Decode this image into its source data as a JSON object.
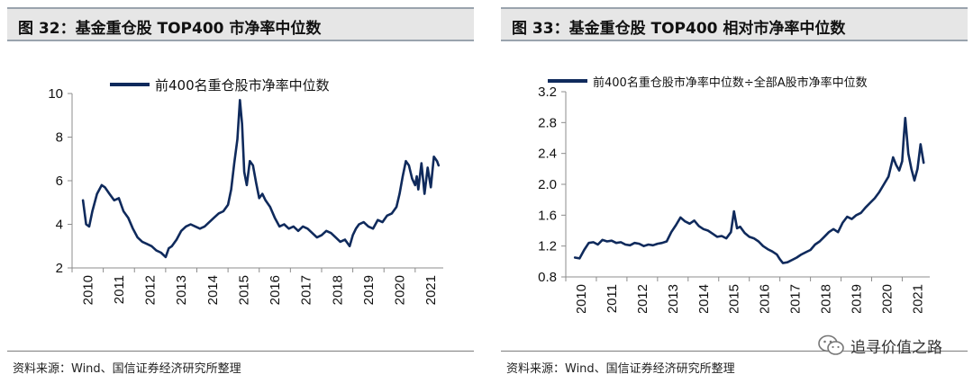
{
  "panels": [
    {
      "title": "图 32：基金重仓股 TOP400 市净率中位数",
      "source": "资料来源：Wind、国信证券经济研究所整理"
    },
    {
      "title": "图 33：基金重仓股 TOP400 相对市净率中位数",
      "source": "资料来源：Wind、国信证券经济研究所整理"
    }
  ],
  "watermark": {
    "text": "追寻价值之路",
    "icon": "wechat-icon"
  },
  "colors": {
    "series": "#0f2a5c",
    "axis": "#8c8c8c",
    "title_bg": "#e6e6e6"
  },
  "chart_data": [
    {
      "type": "line",
      "title": "",
      "legend": "top-left",
      "grid": false,
      "xlabel": "",
      "ylabel": "",
      "xlim": [
        2010,
        2021.9
      ],
      "ylim": [
        2,
        10
      ],
      "yticks": [
        2,
        4,
        6,
        8,
        10
      ],
      "xticks": [
        "2010",
        "2011",
        "2012",
        "2013",
        "2014",
        "2015",
        "2016",
        "2017",
        "2018",
        "2019",
        "2020",
        "2021"
      ],
      "series": [
        {
          "name": "前400名重仓股市净率中位数",
          "x": [
            2010.35,
            2010.45,
            2010.55,
            2010.65,
            2010.8,
            2010.95,
            2011.05,
            2011.2,
            2011.35,
            2011.5,
            2011.65,
            2011.8,
            2011.95,
            2012.1,
            2012.25,
            2012.4,
            2012.55,
            2012.7,
            2012.85,
            2013.0,
            2013.1,
            2013.2,
            2013.35,
            2013.5,
            2013.65,
            2013.8,
            2013.95,
            2014.1,
            2014.25,
            2014.4,
            2014.55,
            2014.7,
            2014.85,
            2015.0,
            2015.1,
            2015.2,
            2015.3,
            2015.38,
            2015.45,
            2015.52,
            2015.6,
            2015.7,
            2015.8,
            2015.9,
            2016.0,
            2016.1,
            2016.2,
            2016.35,
            2016.5,
            2016.65,
            2016.8,
            2016.95,
            2017.1,
            2017.25,
            2017.4,
            2017.55,
            2017.7,
            2017.85,
            2018.0,
            2018.15,
            2018.3,
            2018.45,
            2018.6,
            2018.75,
            2018.9,
            2019.0,
            2019.1,
            2019.2,
            2019.35,
            2019.5,
            2019.65,
            2019.8,
            2019.95,
            2020.1,
            2020.25,
            2020.4,
            2020.5,
            2020.6,
            2020.7,
            2020.8,
            2020.9,
            2021.0,
            2021.05,
            2021.1,
            2021.2,
            2021.3,
            2021.4,
            2021.5,
            2021.6,
            2021.7,
            2021.75
          ],
          "y": [
            5.1,
            4.0,
            3.9,
            4.6,
            5.4,
            5.8,
            5.7,
            5.4,
            5.1,
            5.2,
            4.6,
            4.3,
            3.8,
            3.4,
            3.2,
            3.1,
            3.0,
            2.8,
            2.7,
            2.5,
            2.9,
            3.0,
            3.3,
            3.7,
            3.9,
            4.0,
            3.9,
            3.8,
            3.9,
            4.1,
            4.3,
            4.5,
            4.6,
            4.9,
            5.6,
            6.8,
            7.9,
            9.7,
            8.6,
            6.4,
            5.8,
            6.9,
            6.7,
            5.9,
            5.2,
            5.4,
            5.1,
            4.8,
            4.3,
            3.9,
            4.0,
            3.8,
            3.9,
            3.7,
            3.9,
            3.8,
            3.6,
            3.4,
            3.5,
            3.7,
            3.6,
            3.4,
            3.2,
            3.3,
            3.0,
            3.5,
            3.8,
            4.0,
            4.1,
            3.9,
            3.8,
            4.2,
            4.1,
            4.4,
            4.5,
            4.8,
            5.4,
            6.2,
            6.9,
            6.7,
            6.1,
            5.8,
            6.2,
            5.6,
            6.8,
            5.4,
            6.6,
            5.7,
            7.1,
            6.9,
            6.7
          ]
        }
      ]
    },
    {
      "type": "line",
      "title": "",
      "legend": "top-left",
      "grid": false,
      "xlabel": "",
      "ylabel": "",
      "xlim": [
        2010,
        2021.9
      ],
      "ylim": [
        0.8,
        3.2
      ],
      "yticks": [
        0.8,
        1.2,
        1.6,
        2.0,
        2.4,
        2.8,
        3.2
      ],
      "xticks": [
        "2010",
        "2011",
        "2012",
        "2013",
        "2014",
        "2015",
        "2016",
        "2017",
        "2018",
        "2019",
        "2020",
        "2021"
      ],
      "series": [
        {
          "name": "前400名重仓股市净率中位数÷全部A股市净率中位数",
          "x": [
            2010.3,
            2010.45,
            2010.6,
            2010.75,
            2010.9,
            2011.05,
            2011.2,
            2011.35,
            2011.5,
            2011.65,
            2011.8,
            2011.95,
            2012.1,
            2012.25,
            2012.4,
            2012.55,
            2012.7,
            2012.85,
            2013.0,
            2013.15,
            2013.3,
            2013.45,
            2013.6,
            2013.75,
            2013.9,
            2014.05,
            2014.2,
            2014.35,
            2014.5,
            2014.65,
            2014.8,
            2014.95,
            2015.1,
            2015.25,
            2015.4,
            2015.5,
            2015.6,
            2015.7,
            2015.85,
            2016.0,
            2016.15,
            2016.3,
            2016.45,
            2016.6,
            2016.75,
            2016.9,
            2017.0,
            2017.1,
            2017.25,
            2017.4,
            2017.55,
            2017.7,
            2017.85,
            2018.0,
            2018.15,
            2018.3,
            2018.45,
            2018.6,
            2018.75,
            2018.9,
            2019.05,
            2019.2,
            2019.35,
            2019.5,
            2019.65,
            2019.8,
            2019.95,
            2020.1,
            2020.25,
            2020.4,
            2020.55,
            2020.7,
            2020.8,
            2020.9,
            2021.0,
            2021.05,
            2021.1,
            2021.2,
            2021.3,
            2021.4,
            2021.5,
            2021.6,
            2021.7
          ],
          "y": [
            1.05,
            1.04,
            1.15,
            1.24,
            1.25,
            1.22,
            1.28,
            1.26,
            1.27,
            1.24,
            1.25,
            1.22,
            1.21,
            1.24,
            1.23,
            1.2,
            1.22,
            1.21,
            1.23,
            1.24,
            1.26,
            1.38,
            1.47,
            1.57,
            1.52,
            1.49,
            1.53,
            1.46,
            1.42,
            1.4,
            1.36,
            1.32,
            1.33,
            1.3,
            1.38,
            1.65,
            1.43,
            1.45,
            1.37,
            1.32,
            1.3,
            1.26,
            1.2,
            1.16,
            1.13,
            1.09,
            1.03,
            0.98,
            0.99,
            1.02,
            1.05,
            1.09,
            1.12,
            1.15,
            1.22,
            1.26,
            1.32,
            1.38,
            1.42,
            1.38,
            1.5,
            1.58,
            1.55,
            1.6,
            1.63,
            1.7,
            1.76,
            1.82,
            1.9,
            2.0,
            2.1,
            2.35,
            2.25,
            2.18,
            2.3,
            2.6,
            2.86,
            2.4,
            2.2,
            2.05,
            2.2,
            2.52,
            2.28
          ]
        }
      ]
    }
  ]
}
